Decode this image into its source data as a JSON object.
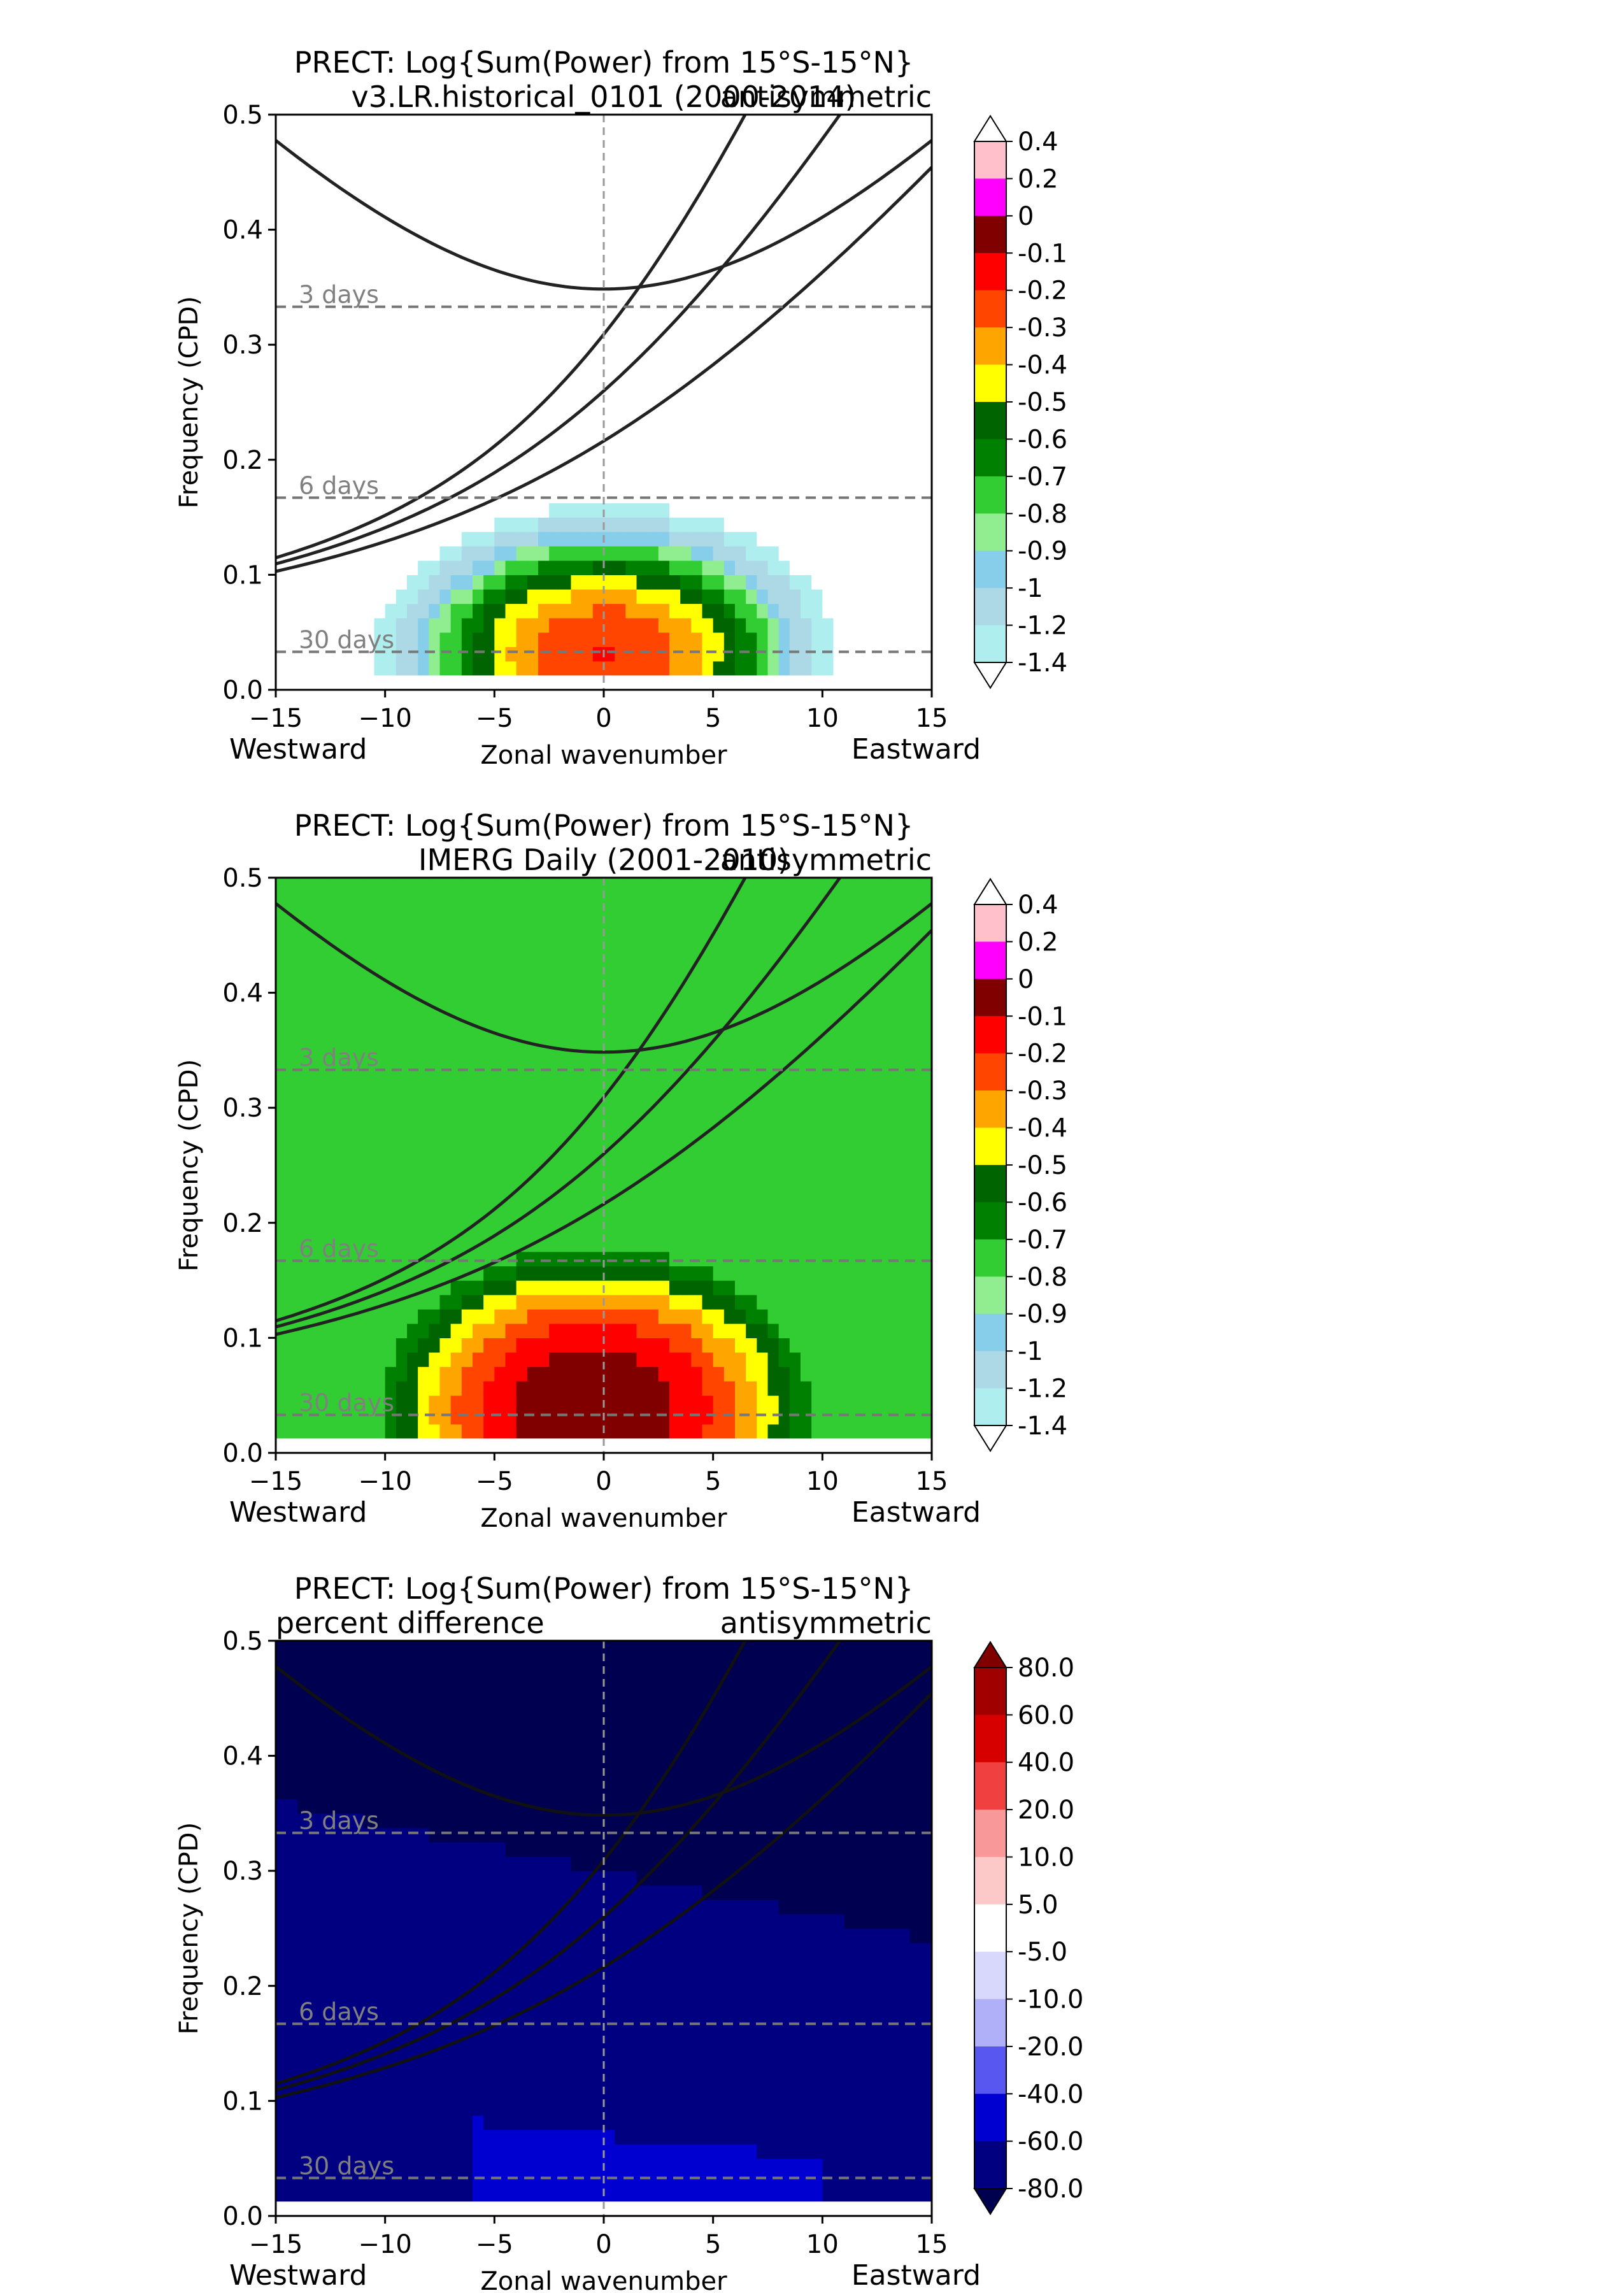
{
  "chart_data": [
    {
      "type": "heatmap",
      "variant": "log_power",
      "title_line1": "PRECT: Log{Sum(Power) from 15°S-15°N}",
      "title_left": "v3.LR.historical_0101 (2000-2014)",
      "title_right": "antisymmetric",
      "xlabel": "Zonal wavenumber",
      "ylabel": "Frequency (CPD)",
      "x_left_label": "Westward",
      "x_right_label": "Eastward",
      "xlim": [
        -15,
        15
      ],
      "ylim": [
        0,
        0.5
      ],
      "xticks": [
        -15,
        -10,
        -5,
        0,
        5,
        10,
        15
      ],
      "yticks": [
        "0.0",
        "0.1",
        "0.2",
        "0.3",
        "0.4",
        "0.5"
      ],
      "period_lines": [
        {
          "label": "3 days",
          "frequency": 0.333
        },
        {
          "label": "6 days",
          "frequency": 0.167
        },
        {
          "label": "30 days",
          "frequency": 0.033
        }
      ],
      "field": {
        "peak_value": -0.15,
        "peak_wavenumber": 1,
        "peak_frequency": 0.025,
        "background": -1.5
      },
      "colorbar": {
        "labels": [
          "0.4",
          "0.2",
          "0",
          "-0.1",
          "-0.2",
          "-0.3",
          "-0.4",
          "-0.5",
          "-0.6",
          "-0.7",
          "-0.8",
          "-0.9",
          "-1",
          "-1.2",
          "-1.4"
        ],
        "levels": [
          0.4,
          0.2,
          0,
          -0.1,
          -0.2,
          -0.3,
          -0.4,
          -0.5,
          -0.6,
          -0.7,
          -0.8,
          -0.9,
          -1,
          -1.2,
          -1.4
        ],
        "colors": [
          "#ffc0cb",
          "#ff00ff",
          "#800000",
          "#ff0000",
          "#ff4500",
          "#ffa500",
          "#ffff00",
          "#006400",
          "#008000",
          "#32cd32",
          "#90ee90",
          "#87ceeb",
          "#add8e6",
          "#afeeee"
        ],
        "extend_top": "#ffffff",
        "extend_bottom": "#ffffff"
      }
    },
    {
      "type": "heatmap",
      "variant": "log_power",
      "title_line1": "PRECT: Log{Sum(Power) from 15°S-15°N}",
      "title_left": "IMERG Daily (2001-2010)",
      "title_right": "antisymmetric",
      "xlabel": "Zonal wavenumber",
      "ylabel": "Frequency (CPD)",
      "x_left_label": "Westward",
      "x_right_label": "Eastward",
      "xlim": [
        -15,
        15
      ],
      "ylim": [
        0,
        0.5
      ],
      "xticks": [
        -15,
        -10,
        -5,
        0,
        5,
        10,
        15
      ],
      "yticks": [
        "0.0",
        "0.1",
        "0.2",
        "0.3",
        "0.4",
        "0.5"
      ],
      "period_lines": [
        {
          "label": "3 days",
          "frequency": 0.333
        },
        {
          "label": "6 days",
          "frequency": 0.167
        },
        {
          "label": "30 days",
          "frequency": 0.033
        }
      ],
      "field": {
        "peak_value": 0.05,
        "peak_wavenumber": 1,
        "peak_frequency": 0.03,
        "background": -0.8
      },
      "colorbar": {
        "labels": [
          "0.4",
          "0.2",
          "0",
          "-0.1",
          "-0.2",
          "-0.3",
          "-0.4",
          "-0.5",
          "-0.6",
          "-0.7",
          "-0.8",
          "-0.9",
          "-1",
          "-1.2",
          "-1.4"
        ],
        "levels": [
          0.4,
          0.2,
          0,
          -0.1,
          -0.2,
          -0.3,
          -0.4,
          -0.5,
          -0.6,
          -0.7,
          -0.8,
          -0.9,
          -1,
          -1.2,
          -1.4
        ],
        "colors": [
          "#ffc0cb",
          "#ff00ff",
          "#800000",
          "#ff0000",
          "#ff4500",
          "#ffa500",
          "#ffff00",
          "#006400",
          "#008000",
          "#32cd32",
          "#90ee90",
          "#87ceeb",
          "#add8e6",
          "#afeeee"
        ],
        "extend_top": "#ffffff",
        "extend_bottom": "#ffffff"
      }
    },
    {
      "type": "heatmap",
      "variant": "percent_difference",
      "title_line1": "PRECT: Log{Sum(Power) from 15°S-15°N}",
      "title_left": "percent difference",
      "title_right": "antisymmetric",
      "xlabel": "Zonal wavenumber",
      "ylabel": "Frequency (CPD)",
      "x_left_label": "Westward",
      "x_right_label": "Eastward",
      "xlim": [
        -15,
        15
      ],
      "ylim": [
        0,
        0.5
      ],
      "xticks": [
        -15,
        -10,
        -5,
        0,
        5,
        10,
        15
      ],
      "yticks": [
        "0.0",
        "0.1",
        "0.2",
        "0.3",
        "0.4",
        "0.5"
      ],
      "period_lines": [
        {
          "label": "3 days",
          "frequency": 0.333
        },
        {
          "label": "6 days",
          "frequency": 0.167
        },
        {
          "label": "30 days",
          "frequency": 0.033
        }
      ],
      "field": {
        "background": -85
      },
      "colorbar": {
        "labels": [
          "80.0",
          "60.0",
          "40.0",
          "20.0",
          "10.0",
          "5.0",
          "-5.0",
          "-10.0",
          "-20.0",
          "-40.0",
          "-60.0",
          "-80.0"
        ],
        "levels": [
          80,
          60,
          40,
          20,
          10,
          5,
          -5,
          -10,
          -20,
          -40,
          -60,
          -80
        ],
        "colors": [
          "#a00000",
          "#d60000",
          "#f04040",
          "#f89898",
          "#fcc8c8",
          "#ffffff",
          "#d8d8fc",
          "#b0b0f8",
          "#5858f0",
          "#0000d0",
          "#000080"
        ],
        "extend_top": "#800000",
        "extend_bottom": "#000050"
      }
    }
  ]
}
